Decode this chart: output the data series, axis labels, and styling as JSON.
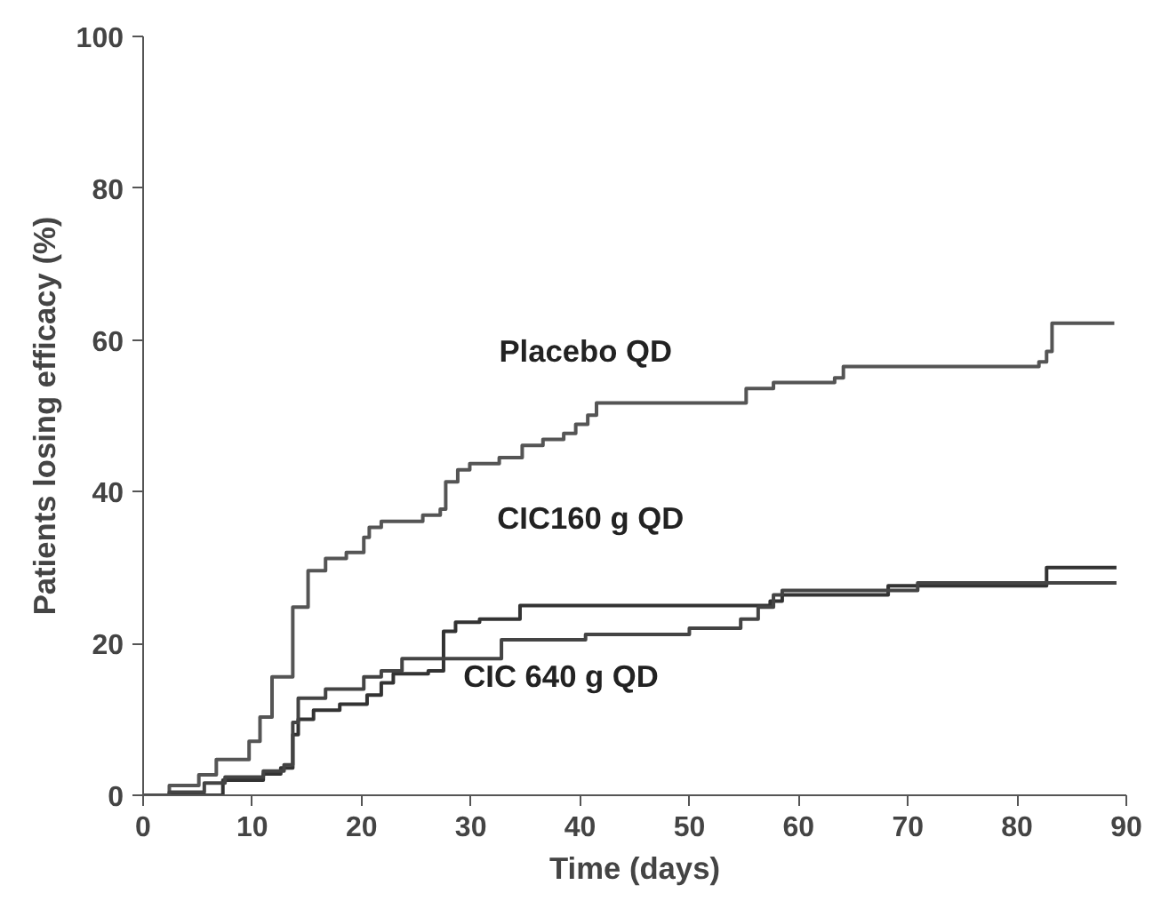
{
  "chart_data": {
    "type": "step",
    "xlabel": "Time (days)",
    "ylabel": "Patients losing efficacy (%)",
    "xlim": [
      0,
      90
    ],
    "ylim": [
      0,
      100
    ],
    "xticks": [
      0,
      10,
      20,
      30,
      40,
      50,
      60,
      70,
      80,
      90
    ],
    "yticks": [
      0,
      20,
      40,
      60,
      80,
      100
    ],
    "grid": false,
    "marker": "none",
    "line_style": "solid",
    "series": [
      {
        "color": "#555555",
        "x": [
          0,
          2.4,
          5.1,
          6.7,
          9.7,
          10.7,
          11.8,
          13.7,
          15.1,
          16.7,
          18.6,
          20.2,
          20.7,
          21.8,
          25.6,
          27.2,
          27.7,
          28.8,
          29.9,
          32.6,
          34.7,
          36.6,
          38.5,
          39.6,
          40.7,
          41.5,
          55.2,
          57.7,
          63.3,
          64.1,
          82,
          82.7,
          83.2,
          88.9
        ],
        "values": [
          0,
          1.3,
          2.7,
          4.7,
          7.1,
          10.3,
          15.6,
          24.8,
          29.6,
          31.2,
          32,
          34,
          35.3,
          36.1,
          36.9,
          37.7,
          41.3,
          42.9,
          43.7,
          44.5,
          46.1,
          46.9,
          47.7,
          48.9,
          50.1,
          51.7,
          53.6,
          54.4,
          55,
          56.5,
          57.1,
          58.5,
          62.2,
          62.2
        ]
      },
      {
        "color": "#333333",
        "x": [
          0,
          5.1,
          7.3,
          11,
          12.6,
          13.7,
          14.2,
          15.6,
          18,
          20.5,
          21.8,
          22.9,
          26.1,
          27.5,
          28.6,
          30.8,
          34.5,
          53.4,
          57.4,
          58.5,
          68.2,
          82.7,
          89.1
        ],
        "values": [
          0,
          0,
          2,
          2.8,
          3.6,
          8,
          10,
          11.2,
          12,
          13.2,
          14.8,
          16,
          16.4,
          21.6,
          22.8,
          23.2,
          25,
          25,
          25.6,
          26.4,
          27.6,
          30,
          30
        ]
      },
      {
        "color": "#444444",
        "x": [
          0,
          2.4,
          5.6,
          7.5,
          11,
          12.9,
          13.7,
          14.2,
          16.7,
          20.2,
          21.8,
          23.7,
          32.8,
          40.5,
          50,
          54.7,
          56.3,
          57.7,
          58.5,
          70.9,
          82.2,
          89.1
        ],
        "values": [
          0,
          0.4,
          1.6,
          2.4,
          3.2,
          4,
          9.6,
          12.8,
          14,
          15.6,
          16.4,
          18,
          20.5,
          21.2,
          22,
          23.2,
          24.8,
          26.4,
          27,
          28,
          28,
          28
        ]
      }
    ],
    "annotations": [
      "Placebo QD",
      "CIC160 g QD",
      "CIC 640 g QD"
    ]
  }
}
